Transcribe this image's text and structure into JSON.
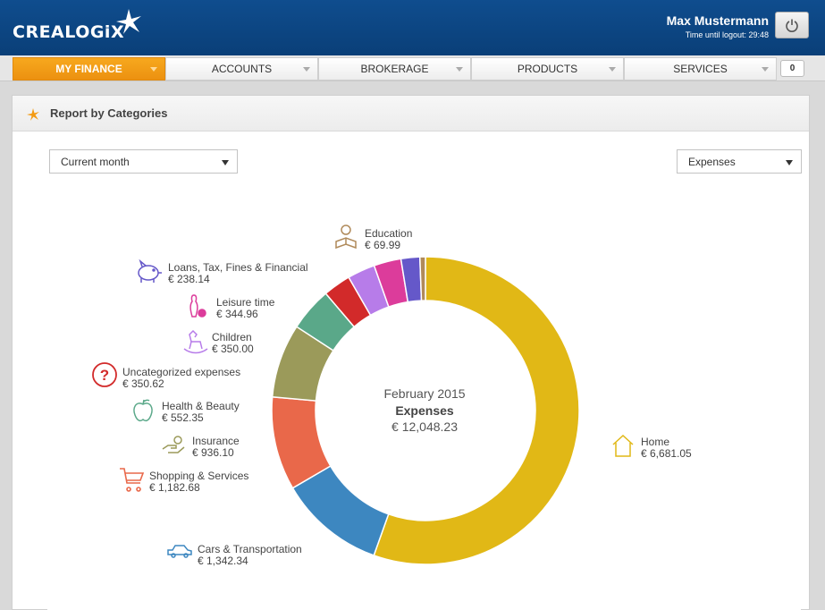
{
  "header": {
    "logo": "CREALOGiX",
    "user_name": "Max Mustermann",
    "logout_text": "Time until logout: 29:48"
  },
  "nav": {
    "tabs": [
      {
        "label": "MY FINANCE",
        "active": true
      },
      {
        "label": "ACCOUNTS",
        "active": false
      },
      {
        "label": "BROKERAGE",
        "active": false
      },
      {
        "label": "PRODUCTS",
        "active": false
      },
      {
        "label": "SERVICES",
        "active": false
      }
    ],
    "badge": "0"
  },
  "panel": {
    "title": "Report by Categories",
    "period_select": "Current month",
    "type_select": "Expenses"
  },
  "colors": {
    "accent": "#f39a12",
    "header_blue": "#0f4d8e"
  },
  "chart_data": {
    "type": "pie",
    "center": {
      "month": "February 2015",
      "type": "Expenses",
      "total": "€ 12,048.23"
    },
    "slices": [
      {
        "name": "Home",
        "amount": "€ 6,681.05",
        "value": 6681.05,
        "color": "#e1b816",
        "icon": "house-icon"
      },
      {
        "name": "Cars & Transportation",
        "amount": "€ 1,342.34",
        "value": 1342.34,
        "color": "#3d87c0",
        "icon": "car-icon"
      },
      {
        "name": "Shopping & Services",
        "amount": "€ 1,182.68",
        "value": 1182.68,
        "color": "#e9684a",
        "icon": "cart-icon"
      },
      {
        "name": "Insurance",
        "amount": "€ 936.10",
        "value": 936.1,
        "color": "#9b9a5a",
        "icon": "hand-coin-icon"
      },
      {
        "name": "Health & Beauty",
        "amount": "€ 552.35",
        "value": 552.35,
        "color": "#5aa889",
        "icon": "apple-icon"
      },
      {
        "name": "Uncategorized expenses",
        "amount": "€ 350.62",
        "value": 350.62,
        "color": "#d22a2a",
        "icon": "question-icon"
      },
      {
        "name": "Children",
        "amount": "€ 350.00",
        "value": 350.0,
        "color": "#b77ce9",
        "icon": "rocking-horse-icon"
      },
      {
        "name": "Leisure time",
        "amount": "€ 344.96",
        "value": 344.96,
        "color": "#dc3c9b",
        "icon": "bowling-icon"
      },
      {
        "name": "Loans, Tax, Fines & Financial",
        "amount": "€ 238.14",
        "value": 238.14,
        "color": "#6558c9",
        "icon": "piggy-bank-icon"
      },
      {
        "name": "Education",
        "amount": "€ 69.99",
        "value": 69.99,
        "color": "#b08a5a",
        "icon": "reader-icon"
      }
    ]
  }
}
